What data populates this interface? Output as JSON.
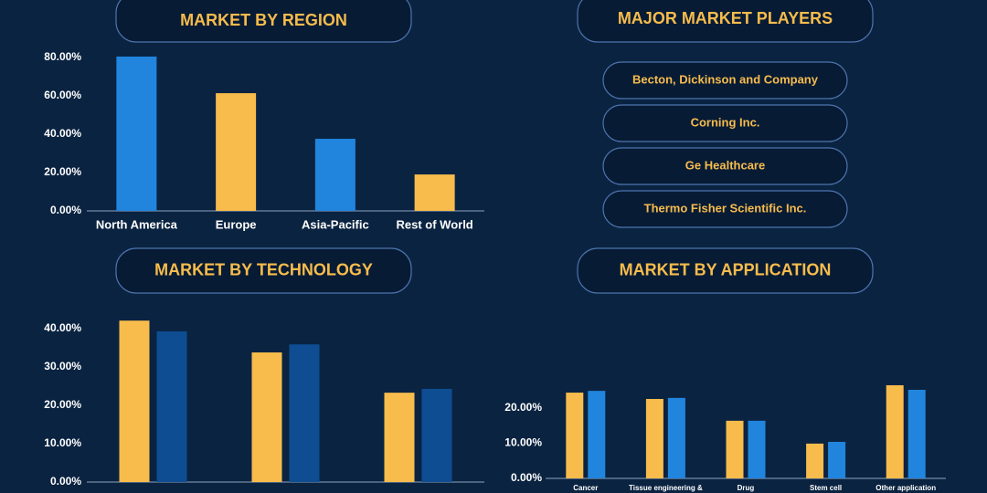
{
  "chart_data": [
    {
      "type": "bar",
      "title": "MARKET BY REGION",
      "categories": [
        "North America",
        "Europe",
        "Asia-Pacific",
        "Rest of World"
      ],
      "values": [
        80.5,
        61.4,
        37.6,
        19.0
      ],
      "colors": [
        "#2185de",
        "#f7bc4c",
        "#2185de",
        "#f7bc4c"
      ],
      "ylim": [
        0,
        85
      ],
      "yticks": [
        {
          "value": 0,
          "label": "0.00%"
        },
        {
          "value": 20,
          "label": "20.00%"
        },
        {
          "value": 40,
          "label": "40.00%"
        },
        {
          "value": 60,
          "label": "60.00%"
        },
        {
          "value": 80,
          "label": "80.00%"
        }
      ]
    },
    {
      "type": "bar",
      "title": "MARKET BY TECHNOLOGY",
      "categories": [
        null,
        null,
        null
      ],
      "series": [
        {
          "color": "#f7bc4c",
          "values": [
            42.1,
            33.8,
            23.3
          ]
        },
        {
          "color": "#0e4d92",
          "values": [
            39.3,
            35.9,
            24.3
          ]
        }
      ],
      "ylim": [
        0,
        45
      ],
      "yticks": [
        {
          "value": 0,
          "label": "0.00%"
        },
        {
          "value": 10,
          "label": "10.00%"
        },
        {
          "value": 20,
          "label": "20.00%"
        },
        {
          "value": 30,
          "label": "30.00%"
        },
        {
          "value": 40,
          "label": "40.00%"
        }
      ]
    },
    {
      "type": "bar",
      "title": "MARKET BY APPLICATION",
      "categories": [
        "Cancer",
        "Tissue engineering &",
        "Drug",
        "Stem cell",
        "Other application"
      ],
      "series": [
        {
          "color": "#f7bc4c",
          "values": [
            24.4,
            22.6,
            16.4,
            9.9,
            26.5
          ]
        },
        {
          "color": "#2185de",
          "values": [
            24.9,
            22.9,
            16.4,
            10.4,
            25.2
          ]
        }
      ],
      "ylim": [
        0,
        30
      ],
      "yticks": [
        {
          "value": 0,
          "label": "0.00%"
        },
        {
          "value": 10,
          "label": "10.00%"
        },
        {
          "value": 20,
          "label": "20.00%"
        }
      ]
    }
  ],
  "players": {
    "title": "MAJOR MARKET PLAYERS",
    "items": [
      "Becton, Dickinson and Company",
      "Corning Inc.",
      "Ge Healthcare",
      "Thermo Fisher Scientific Inc."
    ]
  }
}
